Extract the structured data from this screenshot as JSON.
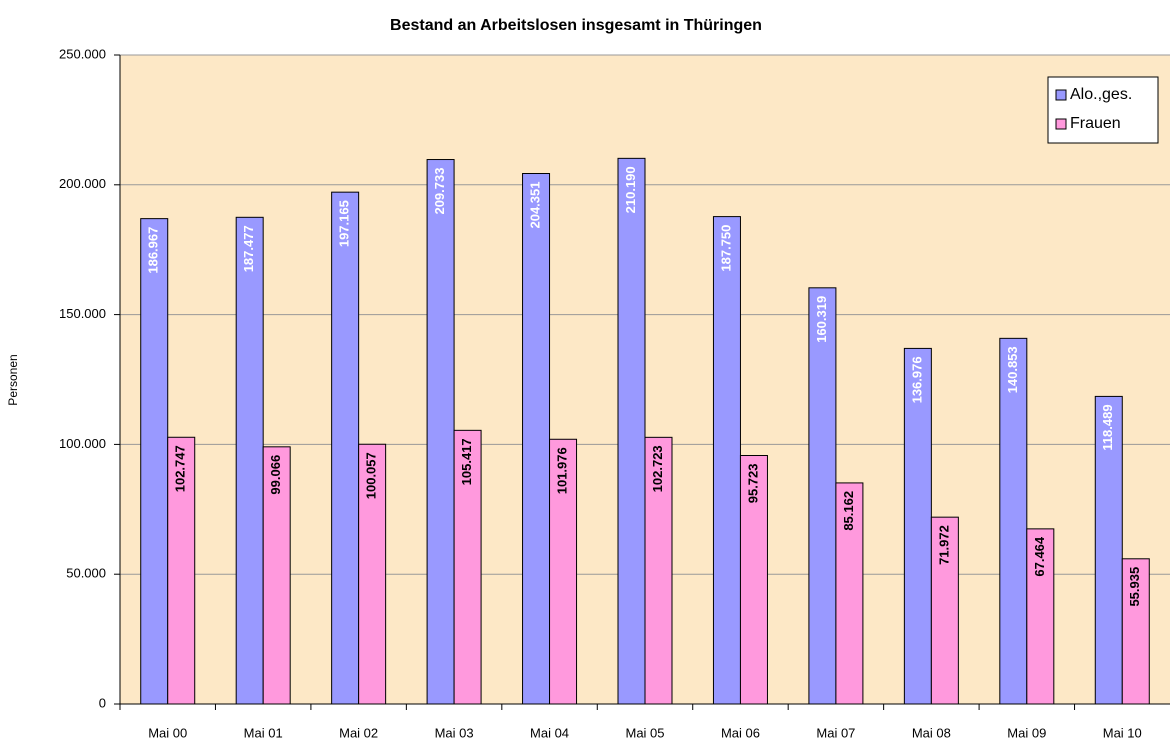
{
  "chart_data": {
    "type": "bar",
    "title": "Bestand an Arbeitslosen insgesamt in Thüringen",
    "y_label": "Personen",
    "categories": [
      "Mai 00",
      "Mai 01",
      "Mai 02",
      "Mai 03",
      "Mai 04",
      "Mai 05",
      "Mai 06",
      "Mai 07",
      "Mai 08",
      "Mai 09",
      "Mai 10"
    ],
    "series": [
      {
        "name": "Alo.,ges.",
        "color": "#9999ff",
        "values": [
          186967,
          187477,
          197165,
          209733,
          204351,
          210190,
          187750,
          160319,
          136976,
          140853,
          118489
        ],
        "value_labels": [
          "186.967",
          "187.477",
          "197.165",
          "209.733",
          "204.351",
          "210.190",
          "187.750",
          "160.319",
          "136.976",
          "140.853",
          "118.489"
        ]
      },
      {
        "name": "Frauen",
        "color": "#ff99dd",
        "values": [
          102747,
          99066,
          100057,
          105417,
          101976,
          102723,
          95723,
          85162,
          71972,
          67464,
          55935
        ],
        "value_labels": [
          "102.747",
          "99.066",
          "100.057",
          "105.417",
          "101.976",
          "102.723",
          "95.723",
          "85.162",
          "71.972",
          "67.464",
          "55.935"
        ]
      }
    ],
    "ylim": [
      0,
      250000
    ],
    "yticks": [
      0,
      {
        "value": 50000,
        "label": "50.000"
      },
      {
        "value": 100000,
        "label": "100.000"
      },
      {
        "value": 150000,
        "label": "150.000"
      },
      {
        "value": 200000,
        "label": "200.000"
      },
      {
        "value": 250000,
        "label": "250.000"
      }
    ],
    "grid": true,
    "legend_position": "upper right"
  }
}
